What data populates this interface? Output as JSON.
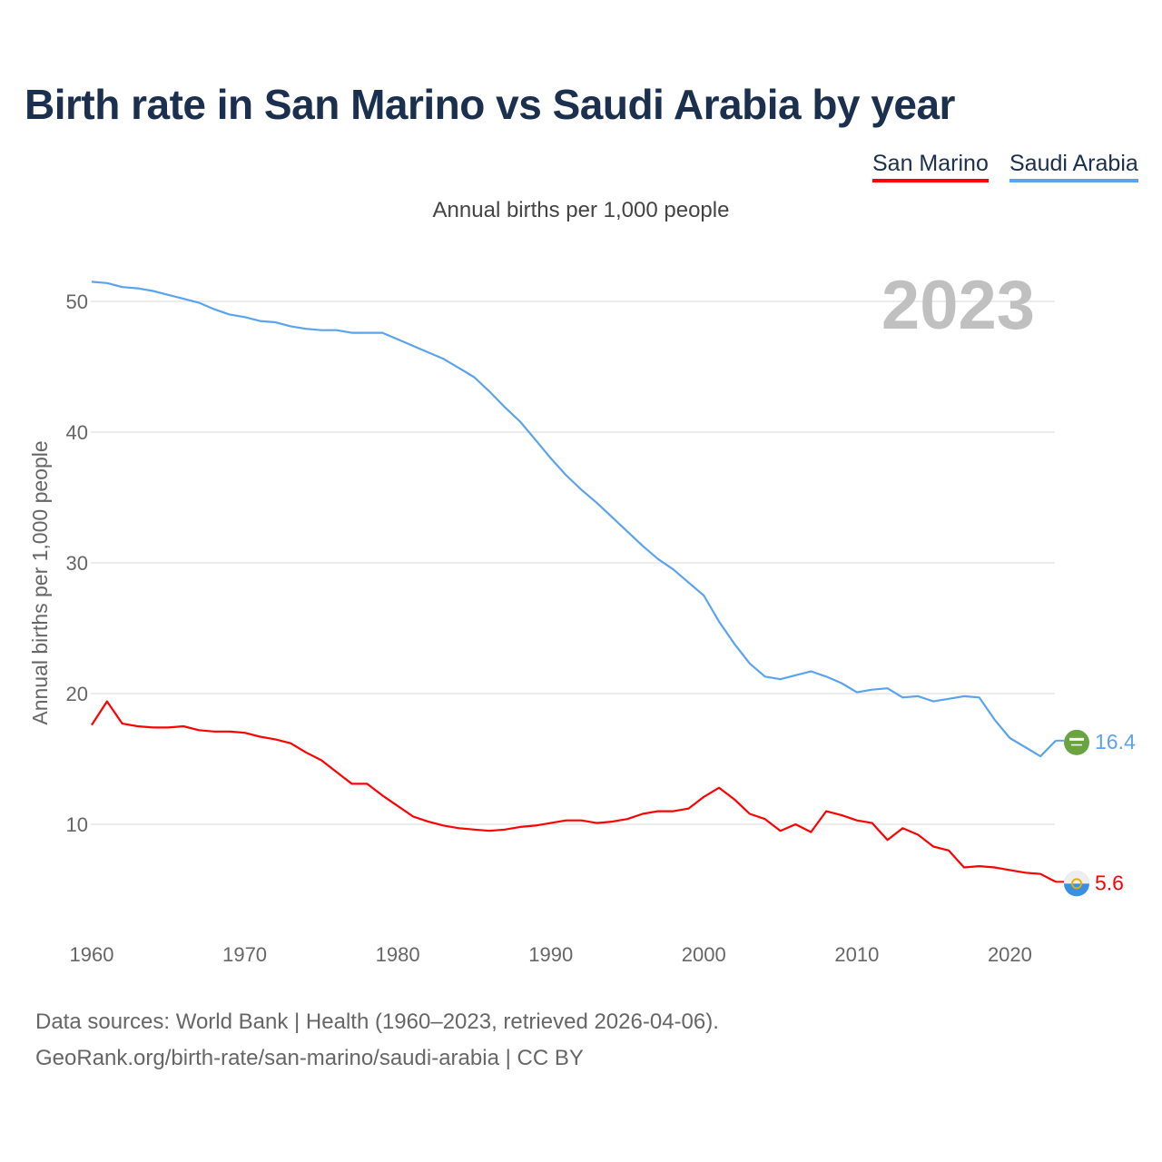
{
  "chart_data": {
    "type": "line",
    "title": "Birth rate in San Marino vs Saudi Arabia by year",
    "subtitle": "Annual births per 1,000 people",
    "ylabel": "Annual births per 1,000 people",
    "xlabel": "",
    "year_label": "2023",
    "xlim": [
      1960,
      2023
    ],
    "ylim": [
      0,
      52
    ],
    "grid": true,
    "legend_position": "top-right",
    "x_ticks": [
      1960,
      1970,
      1980,
      1990,
      2000,
      2010,
      2020
    ],
    "y_ticks": [
      10,
      20,
      30,
      40,
      50
    ],
    "x_start": 1960,
    "series": [
      {
        "name": "San Marino",
        "color": "#ff0000",
        "end_label": "5.6",
        "values": [
          17.6,
          19.4,
          17.7,
          17.5,
          17.4,
          17.4,
          17.5,
          17.2,
          17.1,
          17.1,
          17.0,
          16.7,
          16.5,
          16.2,
          15.5,
          14.9,
          14.0,
          13.1,
          13.1,
          12.2,
          11.4,
          10.6,
          10.2,
          9.9,
          9.7,
          9.6,
          9.5,
          9.6,
          9.8,
          9.9,
          10.1,
          10.3,
          10.3,
          10.1,
          10.2,
          10.4,
          10.8,
          11.0,
          11.0,
          11.2,
          12.1,
          12.8,
          11.9,
          10.8,
          10.4,
          9.5,
          10.0,
          9.4,
          11.0,
          10.7,
          10.3,
          10.1,
          8.8,
          9.7,
          9.2,
          8.3,
          8.0,
          6.7,
          6.8,
          6.7,
          6.5,
          6.3,
          6.2,
          5.6
        ]
      },
      {
        "name": "Saudi Arabia",
        "color": "#5ba3ee",
        "end_label": "16.4",
        "values": [
          51.5,
          51.4,
          51.1,
          51.0,
          50.8,
          50.5,
          50.2,
          49.9,
          49.4,
          49.0,
          48.8,
          48.5,
          48.4,
          48.1,
          47.9,
          47.8,
          47.8,
          47.6,
          47.6,
          47.6,
          47.1,
          46.6,
          46.1,
          45.6,
          44.9,
          44.2,
          43.1,
          41.9,
          40.8,
          39.4,
          38.0,
          36.7,
          35.6,
          34.6,
          33.5,
          32.4,
          31.3,
          30.3,
          29.5,
          28.5,
          27.5,
          25.5,
          23.8,
          22.3,
          21.3,
          21.1,
          21.4,
          21.7,
          21.3,
          20.8,
          20.1,
          20.3,
          20.4,
          19.7,
          19.8,
          19.4,
          19.6,
          19.8,
          19.7,
          18.0,
          16.6,
          15.9,
          15.2,
          16.4
        ]
      }
    ]
  },
  "footer": {
    "line1": "Data sources: World Bank | Health (1960–2023, retrieved 2026-04-06).",
    "line2": "GeoRank.org/birth-rate/san-marino/saudi-arabia | CC BY"
  }
}
